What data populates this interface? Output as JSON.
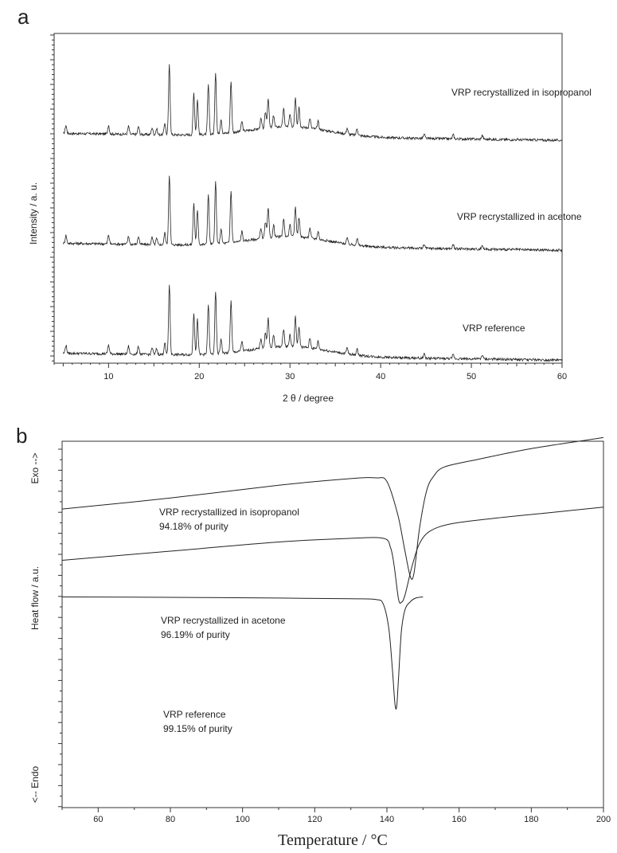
{
  "panels": {
    "a": {
      "letter": "a",
      "xlabel": "2 θ / degree",
      "ylabel": "Intensity / a. u.",
      "curve_labels": [
        "VRP recrystallized in isopropanol",
        "VRP recrystallized in acetone",
        "VRP reference"
      ]
    },
    "b": {
      "letter": "b",
      "xlabel": "Temperature / °C",
      "ylabel": "Heat flow / a.u.",
      "exo_label": "Exo -->",
      "endo_label": "<-- Endo",
      "curve_labels": [
        {
          "name": "VRP recrystallized in isopropanol",
          "purity": "94.18% of purity"
        },
        {
          "name": "VRP recrystallized in acetone",
          "purity": "96.19% of purity"
        },
        {
          "name": "VRP reference",
          "purity": "99.15% of purity"
        }
      ]
    }
  },
  "chart_data": [
    {
      "type": "line",
      "title": "",
      "xlabel": "2 θ / degree",
      "ylabel": "Intensity / a. u.",
      "xlim": [
        4,
        60
      ],
      "xticks": [
        10,
        20,
        30,
        40,
        50,
        60
      ],
      "ylim": [
        0,
        3.3
      ],
      "grid": false,
      "legend": "curve labels placed at right, next to each trace",
      "baseline_start": 0.1,
      "baseline_end": 0.03,
      "peaks": [
        {
          "x": 5.3,
          "h": 0.08
        },
        {
          "x": 10.0,
          "h": 0.09
        },
        {
          "x": 12.2,
          "h": 0.08
        },
        {
          "x": 13.3,
          "h": 0.08
        },
        {
          "x": 14.8,
          "h": 0.07
        },
        {
          "x": 15.3,
          "h": 0.06
        },
        {
          "x": 16.2,
          "h": 0.12
        },
        {
          "x": 16.7,
          "h": 0.7
        },
        {
          "x": 19.4,
          "h": 0.42
        },
        {
          "x": 19.8,
          "h": 0.35
        },
        {
          "x": 21.0,
          "h": 0.5
        },
        {
          "x": 21.8,
          "h": 0.62
        },
        {
          "x": 22.4,
          "h": 0.15
        },
        {
          "x": 23.5,
          "h": 0.52
        },
        {
          "x": 24.7,
          "h": 0.1
        },
        {
          "x": 26.8,
          "h": 0.1
        },
        {
          "x": 27.3,
          "h": 0.16
        },
        {
          "x": 27.6,
          "h": 0.3
        },
        {
          "x": 28.2,
          "h": 0.12
        },
        {
          "x": 29.3,
          "h": 0.18
        },
        {
          "x": 30.0,
          "h": 0.12
        },
        {
          "x": 30.6,
          "h": 0.3
        },
        {
          "x": 31.0,
          "h": 0.2
        },
        {
          "x": 32.2,
          "h": 0.1
        },
        {
          "x": 33.1,
          "h": 0.08
        },
        {
          "x": 36.3,
          "h": 0.06
        },
        {
          "x": 37.4,
          "h": 0.07
        },
        {
          "x": 44.8,
          "h": 0.04
        },
        {
          "x": 48.0,
          "h": 0.04
        },
        {
          "x": 51.2,
          "h": 0.04
        }
      ],
      "series": [
        {
          "name": "VRP recrystallized in isopropanol",
          "offset": 2.2
        },
        {
          "name": "VRP recrystallized in acetone",
          "offset": 1.1
        },
        {
          "name": "VRP reference",
          "offset": 0.0
        }
      ]
    },
    {
      "type": "line",
      "title": "",
      "xlabel": "Temperature / °C",
      "ylabel": "Heat flow / a.u.",
      "xlim": [
        50,
        200
      ],
      "xticks": [
        60,
        80,
        100,
        120,
        140,
        160,
        180,
        200
      ],
      "ylim": [
        0,
        10
      ],
      "grid": false,
      "legend": "curve labels placed below each trace",
      "series": [
        {
          "name": "VRP recrystallized in isopropanol",
          "x": [
            50,
            80,
            110,
            130,
            137,
            140,
            143,
            145,
            146.5,
            147.5,
            149,
            151,
            153,
            156,
            165,
            180,
            200
          ],
          "y": [
            8.15,
            8.45,
            8.8,
            8.98,
            9.0,
            8.9,
            8.0,
            7.0,
            6.3,
            6.4,
            7.6,
            8.65,
            9.05,
            9.3,
            9.5,
            9.8,
            10.1
          ]
        },
        {
          "name": "VRP recrystallized in acetone",
          "x": [
            50,
            80,
            110,
            130,
            139,
            141,
            142,
            143.2,
            144,
            145,
            147,
            149,
            152,
            158,
            170,
            185,
            200
          ],
          "y": [
            6.75,
            7.0,
            7.25,
            7.35,
            7.35,
            7.1,
            6.6,
            5.7,
            5.6,
            5.8,
            6.6,
            7.2,
            7.55,
            7.75,
            7.9,
            8.05,
            8.2
          ]
        },
        {
          "name": "VRP reference",
          "x": [
            50,
            80,
            110,
            130,
            137,
            139,
            140.5,
            141.5,
            142.2,
            142.7,
            143.2,
            144,
            145,
            146.5,
            148,
            150
          ],
          "y": [
            5.75,
            5.74,
            5.72,
            5.7,
            5.68,
            5.55,
            4.9,
            3.8,
            2.85,
            2.75,
            3.5,
            4.8,
            5.4,
            5.62,
            5.72,
            5.75
          ]
        }
      ]
    }
  ]
}
